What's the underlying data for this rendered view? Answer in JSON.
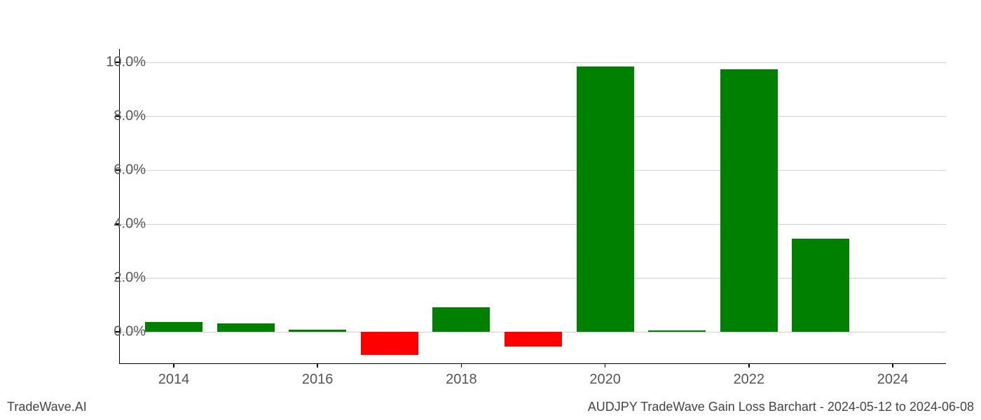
{
  "chart": {
    "type": "bar",
    "years": [
      2014,
      2015,
      2016,
      2017,
      2018,
      2019,
      2020,
      2021,
      2022,
      2023,
      2024
    ],
    "values": [
      0.35,
      0.3,
      0.08,
      -0.85,
      0.9,
      -0.55,
      9.85,
      0.05,
      9.75,
      3.45,
      0
    ],
    "positive_color": "#008000",
    "negative_color": "#ff0000",
    "ylim_min": -1.2,
    "ylim_max": 10.5,
    "ytick_step": 2.0,
    "ytick_start": 0.0,
    "ytick_end": 10.0,
    "xtick_step": 2,
    "xtick_start": 2014,
    "xtick_end": 2024,
    "bar_width_ratio": 0.8,
    "grid_color": "#d0d0d0",
    "axis_color": "#000000",
    "background_color": "#ffffff",
    "label_fontsize": 20,
    "label_color": "#555555"
  },
  "footer": {
    "left": "TradeWave.AI",
    "right": "AUDJPY TradeWave Gain Loss Barchart - 2024-05-12 to 2024-06-08",
    "fontsize": 18,
    "color": "#444444"
  }
}
